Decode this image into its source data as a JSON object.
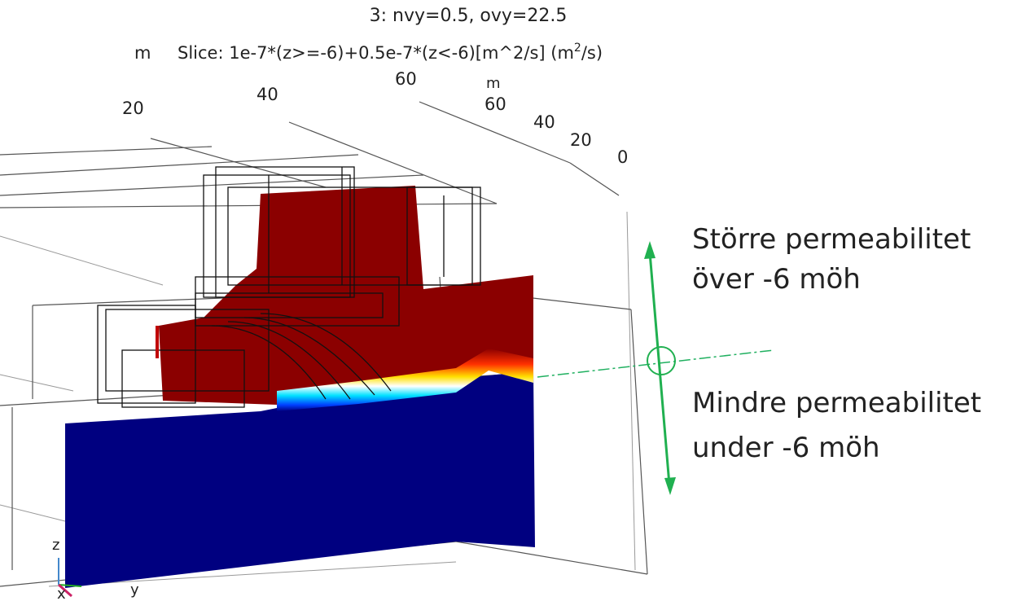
{
  "header": {
    "line1": "3: nvy=0.5, ovy=22.5",
    "unit": "m",
    "slice": "Slice: 1e-7*(z>=-6)+0.5e-7*(z<-6)[m^2/s] (m",
    "slice_sup": "2",
    "slice_end": "/s)"
  },
  "axis_labels": {
    "left": [
      "20",
      "40",
      "60"
    ],
    "right_unit": "m",
    "right": [
      "60",
      "40",
      "20",
      "0"
    ]
  },
  "annotations": {
    "upper": [
      "Större permeabilitet",
      "över -6 möh"
    ],
    "lower": [
      "Mindre permeabilitet",
      "under -6 möh"
    ]
  },
  "triad": [
    "z",
    "x",
    "y"
  ]
}
